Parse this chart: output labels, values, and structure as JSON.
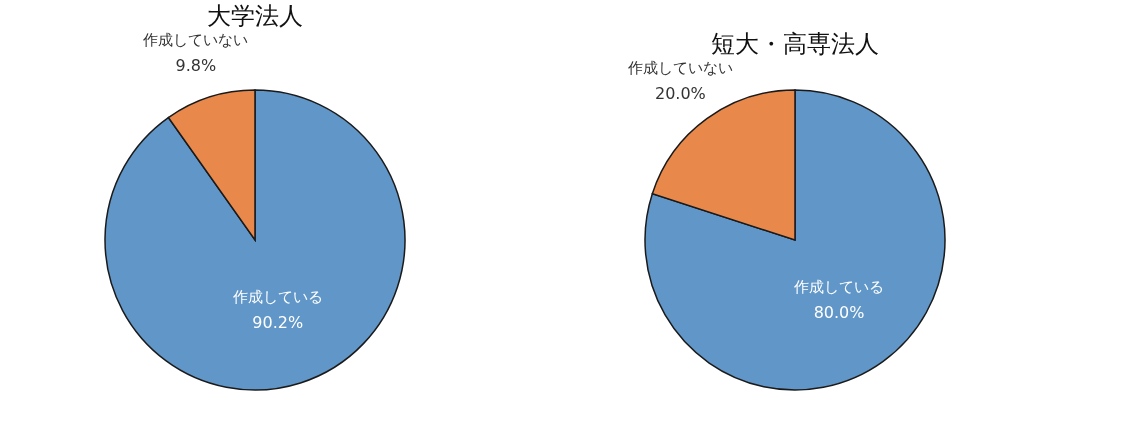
{
  "chart_data": [
    {
      "type": "pie",
      "title": "大学法人",
      "categories": [
        "作成している",
        "作成していない"
      ],
      "values": [
        90.2,
        9.8
      ],
      "colors": [
        "#6096c8",
        "#e8884a"
      ],
      "value_labels": [
        "90.2%",
        "9.8%"
      ],
      "legend": false
    },
    {
      "type": "pie",
      "title": "短大・高専法人",
      "categories": [
        "作成している",
        "作成していない"
      ],
      "values": [
        80.0,
        20.0
      ],
      "colors": [
        "#6096c8",
        "#e8884a"
      ],
      "value_labels": [
        "80.0%",
        "20.0%"
      ],
      "legend": false
    }
  ]
}
